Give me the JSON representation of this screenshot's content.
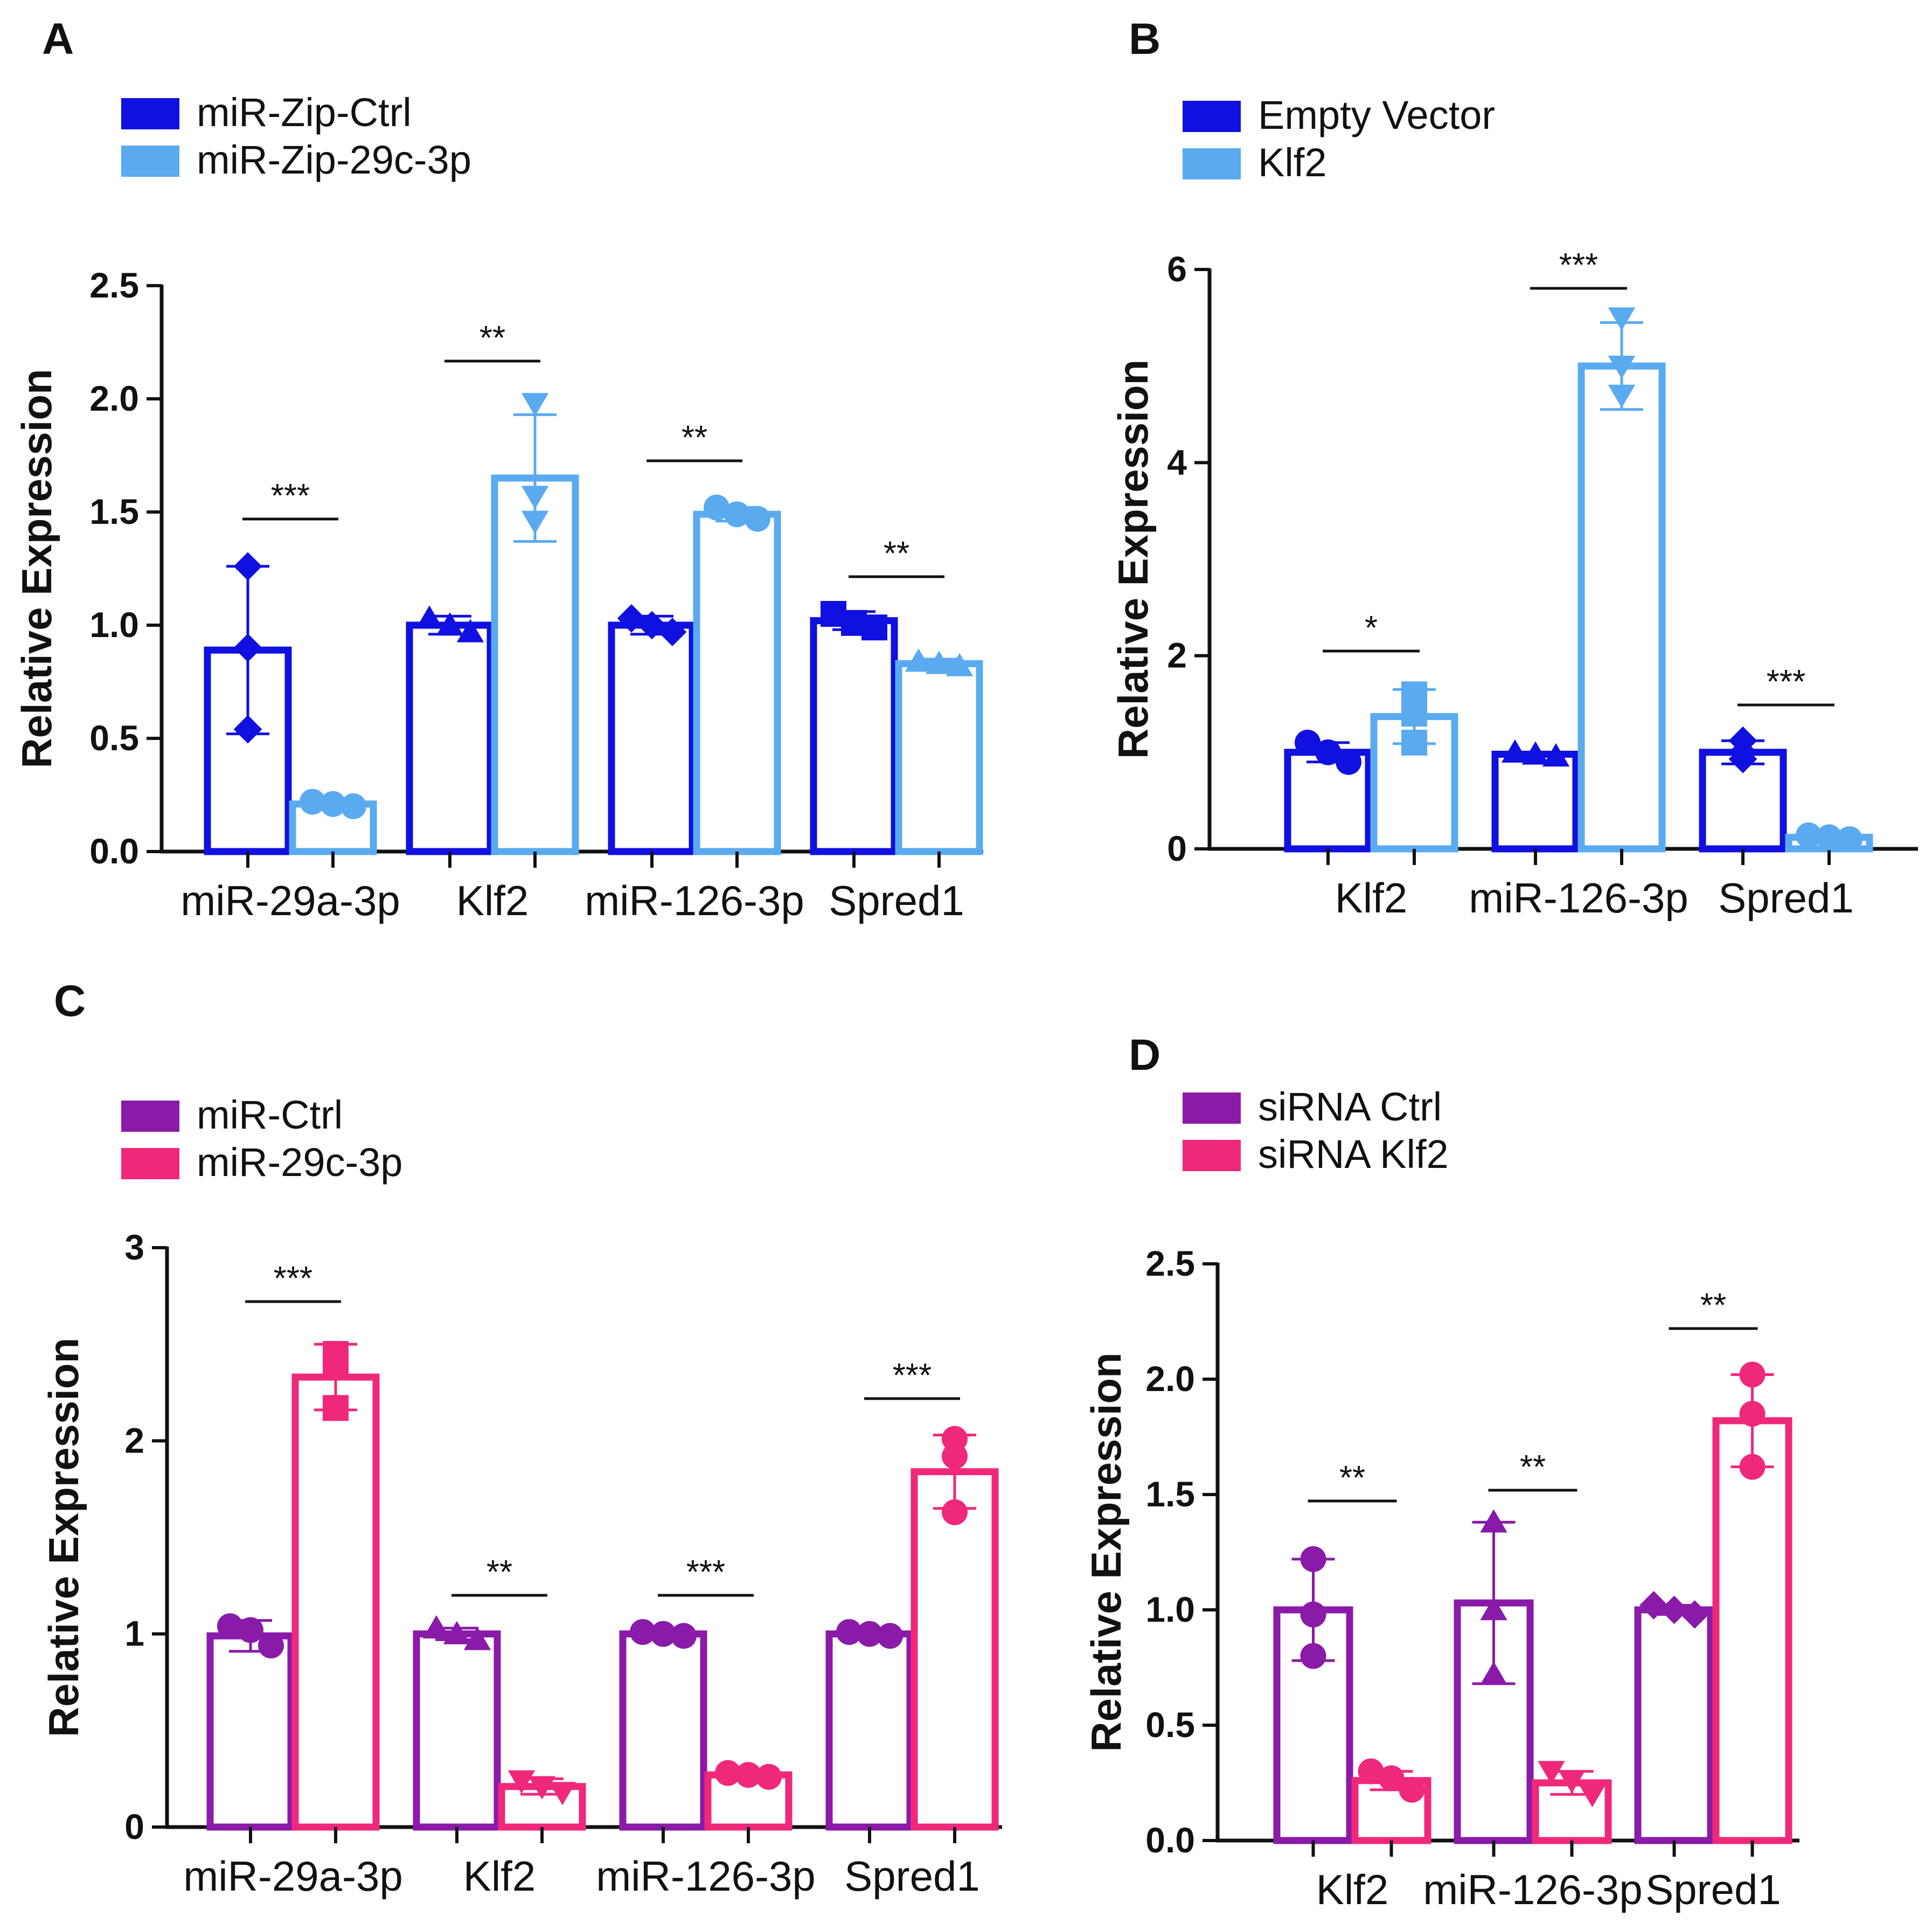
{
  "chart_data": [
    {
      "panel": "A",
      "type": "bar",
      "ylabel": "Relative Expression",
      "ylim": [
        0,
        2.5
      ],
      "yticks": [
        0,
        0.5,
        1.0,
        1.5,
        2.0,
        2.5
      ],
      "ytick_labels": [
        "0.0",
        "0.5",
        "1.0",
        "1.5",
        "2.0",
        "2.5"
      ],
      "categories": [
        "miR-29a-3p",
        "Klf2",
        "miR-126-3p",
        "Spred1"
      ],
      "series": [
        {
          "name": "miR-Zip-Ctrl",
          "color": "#1010e0",
          "values": [
            0.89,
            1.0,
            1.0,
            1.02
          ],
          "sd": [
            0.37,
            0.04,
            0.04,
            0.04
          ],
          "points": [
            [
              1.26,
              0.9,
              0.54
            ],
            [
              1.03,
              1.0,
              0.97
            ],
            [
              1.03,
              1.0,
              0.97
            ],
            [
              1.05,
              1.01,
              0.99
            ]
          ],
          "marker": "mixed"
        },
        {
          "name": "miR-Zip-29c-3p",
          "color": "#5aaaf0",
          "values": [
            0.21,
            1.65,
            1.49,
            0.83
          ],
          "sd": [
            0.02,
            0.28,
            0.03,
            0.02
          ],
          "points": [
            [
              0.22,
              0.21,
              0.2
            ],
            [
              1.98,
              1.57,
              1.46
            ],
            [
              1.52,
              1.49,
              1.47
            ],
            [
              0.84,
              0.83,
              0.82
            ]
          ],
          "marker": "mixed"
        }
      ],
      "significance": [
        "***",
        "**",
        "**",
        "**"
      ],
      "legend": "top-left"
    },
    {
      "panel": "B",
      "type": "bar",
      "ylabel": "Relative Expression",
      "ylim": [
        0,
        6
      ],
      "yticks": [
        0,
        2,
        4,
        6
      ],
      "ytick_labels": [
        "0",
        "2",
        "4",
        "6"
      ],
      "categories": [
        "Klf2",
        "miR-126-3p",
        "Spred1"
      ],
      "series": [
        {
          "name": "Empty Vector",
          "color": "#1010e0",
          "values": [
            1.0,
            0.98,
            1.0
          ],
          "sd": [
            0.1,
            0.02,
            0.12
          ],
          "points": [
            [
              1.1,
              1.0,
              0.9
            ],
            [
              1.0,
              0.98,
              0.96
            ],
            [
              1.12,
              1.0,
              0.93
            ]
          ],
          "marker": "mixed"
        },
        {
          "name": "Klf2",
          "color": "#5aaaf0",
          "values": [
            1.37,
            5.0,
            0.12
          ],
          "sd": [
            0.28,
            0.45,
            0.03
          ],
          "points": [
            [
              1.6,
              1.4,
              1.1
            ],
            [
              5.5,
              5.0,
              4.7
            ],
            [
              0.14,
              0.12,
              0.1
            ]
          ],
          "marker": "mixed"
        }
      ],
      "significance": [
        "*",
        "***",
        "***"
      ],
      "legend": "top-left"
    },
    {
      "panel": "C",
      "type": "bar",
      "ylabel": "Relative Expression",
      "ylim": [
        0,
        3
      ],
      "yticks": [
        0,
        1,
        2,
        3
      ],
      "ytick_labels": [
        "0",
        "1",
        "2",
        "3"
      ],
      "categories": [
        "miR-29a-3p",
        "Klf2",
        "miR-126-3p",
        "Spred1"
      ],
      "series": [
        {
          "name": "miR-Ctrl",
          "color": "#8a1aa8",
          "values": [
            0.99,
            1.0,
            1.0,
            1.0
          ],
          "sd": [
            0.08,
            0.03,
            0.02,
            0.02
          ],
          "points": [
            [
              1.04,
              1.02,
              0.94
            ],
            [
              1.03,
              1.0,
              0.97
            ],
            [
              1.01,
              1.0,
              0.99
            ],
            [
              1.01,
              1.0,
              0.99
            ]
          ],
          "marker": "mixed"
        },
        {
          "name": "miR-29c-3p",
          "color": "#f0287a",
          "values": [
            2.33,
            0.21,
            0.27,
            1.84
          ],
          "sd": [
            0.17,
            0.04,
            0.02,
            0.19
          ],
          "points": [
            [
              2.45,
              2.4,
              2.17
            ],
            [
              0.24,
              0.21,
              0.18
            ],
            [
              0.28,
              0.27,
              0.26
            ],
            [
              2.01,
              1.92,
              1.63
            ]
          ],
          "marker": "mixed"
        }
      ],
      "significance": [
        "***",
        "**",
        "***",
        "***"
      ],
      "legend": "top-left"
    },
    {
      "panel": "D",
      "type": "bar",
      "ylabel": "Relative Expression",
      "ylim": [
        0,
        2.5
      ],
      "yticks": [
        0,
        0.5,
        1.0,
        1.5,
        2.0,
        2.5
      ],
      "ytick_labels": [
        "0.0",
        "0.5",
        "1.0",
        "1.5",
        "2.0",
        "2.5"
      ],
      "categories": [
        "Klf2",
        "miR-126-3p",
        "Spred1"
      ],
      "series": [
        {
          "name": "siRNA Ctrl",
          "color": "#8a1aa8",
          "values": [
            1.0,
            1.03,
            1.0
          ],
          "sd": [
            0.22,
            0.35,
            0.02
          ],
          "points": [
            [
              1.22,
              0.98,
              0.8
            ],
            [
              1.38,
              1.0,
              0.72
            ],
            [
              1.02,
              1.0,
              0.98
            ]
          ],
          "marker": "mixed"
        },
        {
          "name": "siRNA Klf2",
          "color": "#f0287a",
          "values": [
            0.26,
            0.25,
            1.82
          ],
          "sd": [
            0.04,
            0.05,
            0.2
          ],
          "points": [
            [
              0.3,
              0.27,
              0.22
            ],
            [
              0.3,
              0.26,
              0.2
            ],
            [
              2.02,
              1.85,
              1.62
            ]
          ],
          "marker": "mixed"
        }
      ],
      "significance": [
        "**",
        "**",
        "**"
      ],
      "legend": "top-left"
    }
  ]
}
